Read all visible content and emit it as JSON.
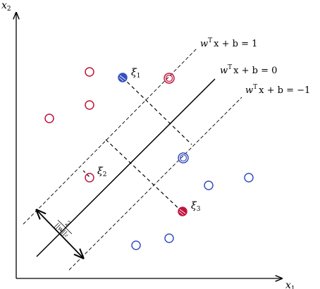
{
  "axes": {
    "x": {
      "name": "x",
      "sub": "1"
    },
    "y": {
      "name": "x",
      "sub": "2"
    }
  },
  "hyperplanes": {
    "upper": {
      "w": "w",
      "sup": "T",
      "rest": "x + b = 1"
    },
    "middle": {
      "w": "w",
      "sup": "T",
      "rest": "x + b = 0"
    },
    "lower": {
      "w": "w",
      "sup": "T",
      "rest": "x + b = −1"
    }
  },
  "margin_label": {
    "numerator": "2",
    "denominator": "||w||₂"
  },
  "slacks": [
    {
      "name": "ξ",
      "sub": "1"
    },
    {
      "name": "ξ",
      "sub": "2"
    },
    {
      "name": "ξ",
      "sub": "3"
    }
  ],
  "colors": {
    "red": "#c0143c",
    "blue": "#3650c0",
    "black": "#000000"
  }
}
